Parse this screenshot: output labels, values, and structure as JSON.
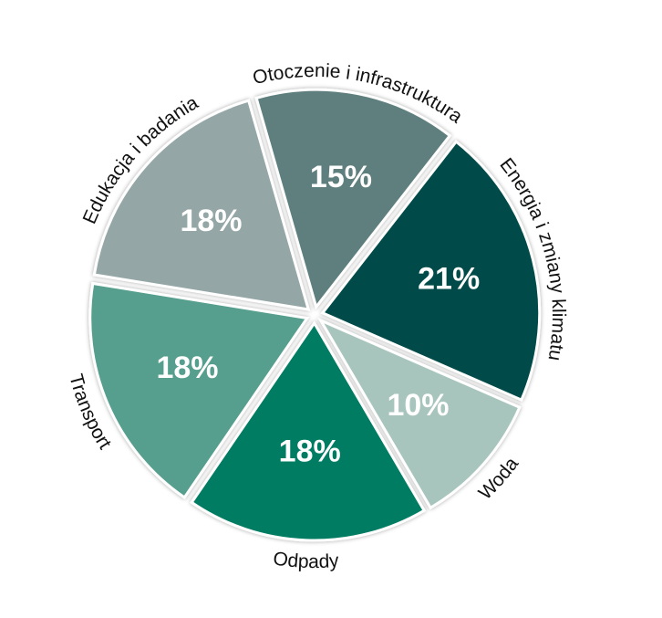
{
  "chart_data": {
    "type": "pie",
    "categories": [
      "Otoczenie i infrastruktura",
      "Energia i zmiany klimatu",
      "Woda",
      "Odpady",
      "Transport",
      "Edukacja i badania"
    ],
    "values": [
      15,
      21,
      10,
      18,
      18,
      18
    ],
    "value_labels": [
      "15%",
      "21%",
      "10%",
      "18%",
      "18%",
      "18%"
    ],
    "colors": [
      "#5e7f7e",
      "#004b48",
      "#a7c5bc",
      "#007b64",
      "#569e8d",
      "#95a6a6"
    ]
  }
}
